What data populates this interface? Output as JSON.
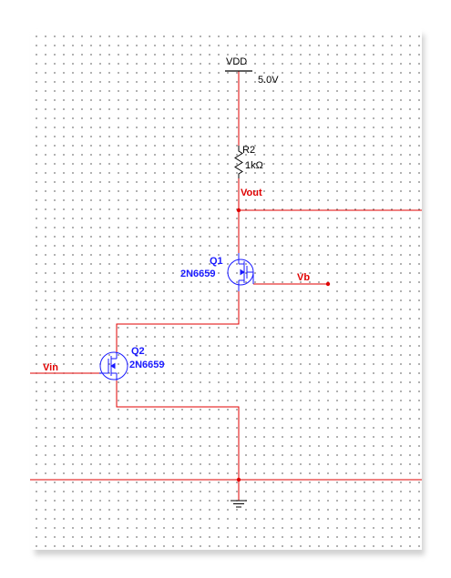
{
  "schematic": {
    "power": {
      "name": "VDD",
      "voltage": "5.0V"
    },
    "resistor": {
      "ref": "R2",
      "value": "1kΩ"
    },
    "nets": {
      "out": "Vout",
      "bias": "Vb",
      "input": "Vin"
    },
    "transistors": [
      {
        "ref": "Q1",
        "part": "2N6659"
      },
      {
        "ref": "Q2",
        "part": "2N6659"
      }
    ]
  },
  "colors": {
    "wire": "#e00000",
    "component": "#1a1aff",
    "supply": "#000000",
    "junction": "#e00000"
  }
}
